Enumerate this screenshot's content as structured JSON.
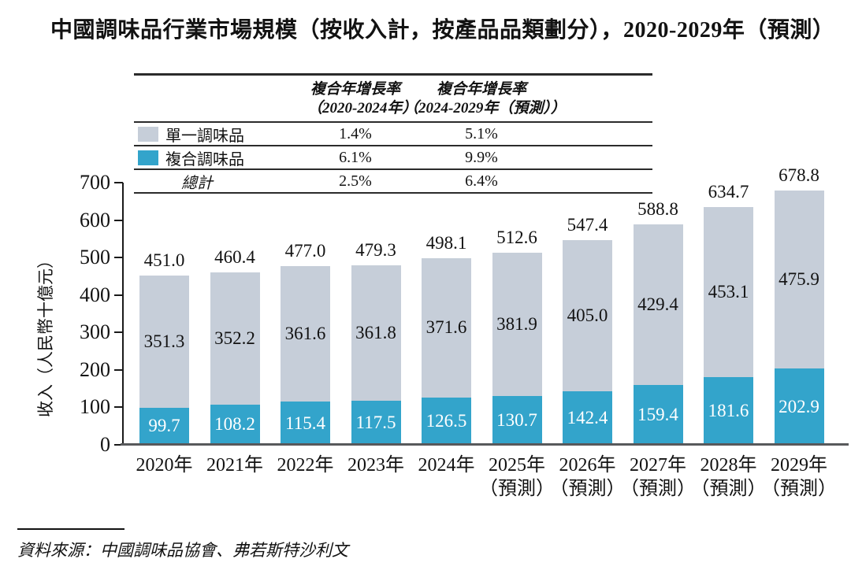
{
  "title": "中國調味品行業市場規模（按收入計，按產品品類劃分），2020-2029年（預測）",
  "source": "資料來源：中國調味品協會、弗若斯特沙利文",
  "colors": {
    "single_seasoning": "#c6ced9",
    "compound_seasoning": "#33a4cb",
    "axis_line": "#58595b",
    "table_line": "#2b2b2b"
  },
  "cagr_table": {
    "headers": [
      {
        "line1": "複合年增長率",
        "line2": "（2020-2024年）"
      },
      {
        "line1": "複合年增長率",
        "line2": "（2024-2029年（預測））"
      }
    ],
    "rows": [
      {
        "label": "單一調味品",
        "cagr_2020_2024": "1.4%",
        "cagr_2024_2029": "5.1%"
      },
      {
        "label": "複合調味品",
        "cagr_2020_2024": "6.1%",
        "cagr_2024_2029": "9.9%"
      },
      {
        "label": "總計",
        "cagr_2020_2024": "2.5%",
        "cagr_2024_2029": "6.4%"
      }
    ]
  },
  "chart_data": {
    "type": "bar",
    "stacked": true,
    "title": "中國調味品行業市場規模（按收入計，按產品品類劃分），2020-2029年（預測）",
    "xlabel": "",
    "ylabel": "收入（人民幣十億元）",
    "ylim": [
      0,
      700
    ],
    "yticks": [
      0,
      100,
      200,
      300,
      400,
      500,
      600,
      700
    ],
    "grid": false,
    "legend_position": "table-top-left",
    "categories": [
      {
        "label": "2020年",
        "note": ""
      },
      {
        "label": "2021年",
        "note": ""
      },
      {
        "label": "2022年",
        "note": ""
      },
      {
        "label": "2023年",
        "note": ""
      },
      {
        "label": "2024年",
        "note": ""
      },
      {
        "label": "2025年",
        "note": "（預測）"
      },
      {
        "label": "2026年",
        "note": "（預測）"
      },
      {
        "label": "2027年",
        "note": "（預測）"
      },
      {
        "label": "2028年",
        "note": "（預測）"
      },
      {
        "label": "2029年",
        "note": "（預測）"
      }
    ],
    "series": [
      {
        "name": "單一調味品",
        "color": "#c6ced9",
        "values": [
          351.3,
          352.2,
          361.6,
          361.8,
          371.6,
          381.9,
          405.0,
          429.4,
          453.1,
          475.9
        ]
      },
      {
        "name": "複合調味品",
        "color": "#33a4cb",
        "values": [
          99.7,
          108.2,
          115.4,
          117.5,
          126.5,
          130.7,
          142.4,
          159.4,
          181.6,
          202.9
        ]
      }
    ],
    "totals": [
      451.0,
      460.4,
      477.0,
      479.3,
      498.1,
      512.6,
      547.4,
      588.8,
      634.7,
      678.8
    ]
  }
}
